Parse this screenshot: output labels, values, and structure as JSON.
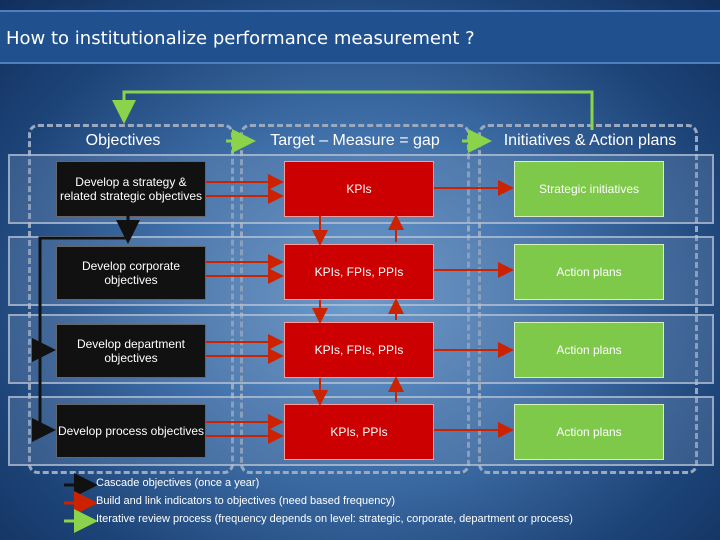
{
  "title": "How to institutionalize performance measurement ?",
  "columns": {
    "objectives": "Objectives",
    "measure": "Target – Measure = gap",
    "initiatives": "Initiatives & Action plans"
  },
  "rows": [
    {
      "objective": "Develop a strategy & related strategic objectives",
      "indicators": "KPIs",
      "action": "Strategic initiatives"
    },
    {
      "objective": "Develop corporate objectives",
      "indicators": "KPIs, FPIs, PPIs",
      "action": "Action plans"
    },
    {
      "objective": "Develop department objectives",
      "indicators": "KPIs, FPIs, PPIs",
      "action": "Action plans"
    },
    {
      "objective": "Develop process objectives",
      "indicators": "KPIs, PPIs",
      "action": "Action plans"
    }
  ],
  "legend": {
    "cascade": "Cascade objectives (once a year)",
    "build": "Build and link indicators to objectives (need based frequency)",
    "review": "Iterative review process (frequency depends on level: strategic, corporate, department or process)"
  },
  "colors": {
    "black_arrow": "#111111",
    "red_arrow": "#cc2200",
    "green_arrow": "#8ad34a",
    "objective_box": "#111111",
    "indicator_box": "#cc0000",
    "action_box": "#7ec84a"
  }
}
